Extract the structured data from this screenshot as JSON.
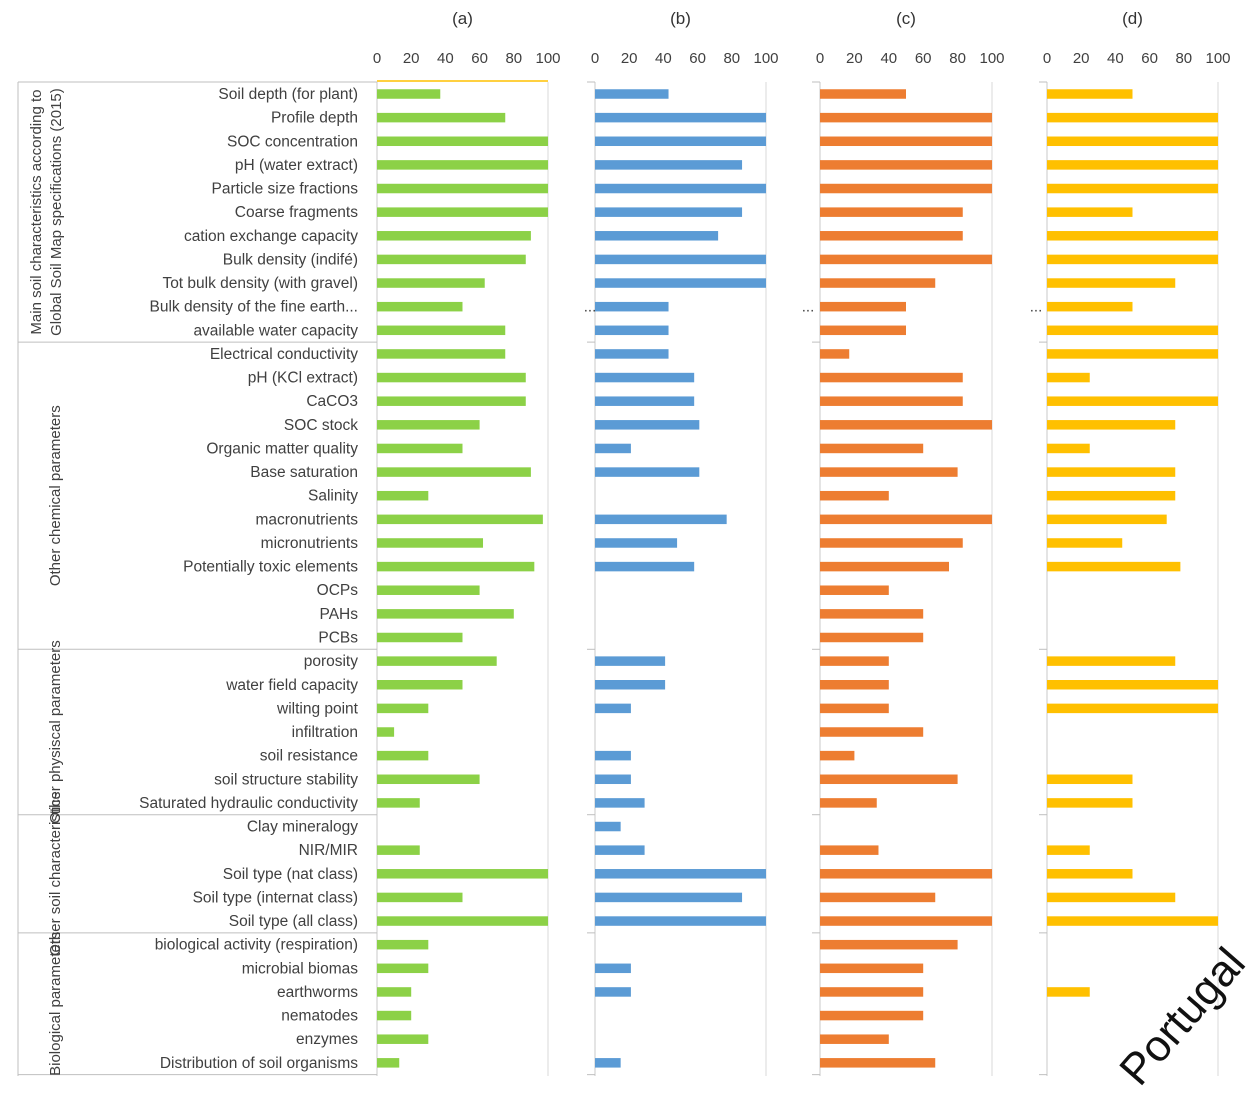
{
  "chart_data": {
    "type": "bar",
    "orientation": "horizontal",
    "xlim": [
      0,
      100
    ],
    "xticks": [
      "0",
      "20",
      "40",
      "60",
      "80",
      "100"
    ],
    "categories": [
      "Soil depth (for plant)",
      "Profile depth",
      "SOC concentration",
      "pH (water extract)",
      "Particle size fractions",
      "Coarse fragments",
      "cation exchange capacity",
      "Bulk density (indifé)",
      "Tot bulk  density (with gravel)",
      "Bulk density of the fine earth...",
      "available water capacity",
      "Electrical conductivity",
      "pH (KCl extract)",
      "CaCO3",
      "SOC stock",
      "Organic matter quality",
      "Base saturation",
      "Salinity",
      "macronutrients",
      "micronutrients",
      "Potentially toxic elements",
      "OCPs",
      "PAHs",
      "PCBs",
      "porosity",
      "water field capacity",
      "wilting point",
      "infiltration",
      "soil resistance",
      "soil structure stability",
      "Saturated hydraulic conductivity",
      "Clay mineralogy",
      "NIR/MIR",
      "Soil type (nat class)",
      "Soil type (internat class)",
      "Soil type (all class)",
      "biological activity (respiration)",
      "microbial biomas",
      "earthworms",
      "nematodes",
      "enzymes",
      "Distribution of soil organisms"
    ],
    "groups": [
      {
        "label": "Main soil characteristics according to Global Soil Map specifications (2015)",
        "start": 0,
        "end": 10
      },
      {
        "label": "Other chemical parameters",
        "start": 11,
        "end": 23
      },
      {
        "label": "Other physiscal parameters",
        "start": 24,
        "end": 30
      },
      {
        "label": "Other soil characteristics",
        "start": 31,
        "end": 35
      },
      {
        "label": "Biological parameters",
        "start": 36,
        "end": 41
      }
    ],
    "series": [
      {
        "panel": "(a)",
        "color": "#8cd147",
        "values": [
          37,
          75,
          100,
          100,
          100,
          100,
          90,
          87,
          63,
          50,
          75,
          75,
          87,
          87,
          60,
          50,
          90,
          30,
          97,
          62,
          92,
          60,
          80,
          50,
          70,
          50,
          30,
          10,
          30,
          60,
          25,
          0,
          25,
          100,
          50,
          100,
          30,
          30,
          20,
          20,
          30,
          13
        ]
      },
      {
        "panel": "(b)",
        "color": "#5b9bd5",
        "values": [
          43,
          100,
          100,
          86,
          100,
          86,
          72,
          100,
          100,
          43,
          43,
          43,
          58,
          58,
          61,
          21,
          61,
          0,
          77,
          48,
          58,
          0,
          0,
          0,
          41,
          41,
          21,
          0,
          21,
          21,
          29,
          15,
          29,
          100,
          86,
          100,
          0,
          21,
          21,
          0,
          0,
          15
        ]
      },
      {
        "panel": "(c)",
        "color": "#ed7d31",
        "values": [
          50,
          100,
          100,
          100,
          100,
          83,
          83,
          100,
          67,
          50,
          50,
          17,
          83,
          83,
          100,
          60,
          80,
          40,
          100,
          83,
          75,
          40,
          60,
          60,
          40,
          40,
          40,
          60,
          20,
          80,
          33,
          0,
          34,
          100,
          67,
          100,
          80,
          60,
          60,
          60,
          40,
          67
        ]
      },
      {
        "panel": "(d)",
        "color": "#ffc000",
        "values": [
          50,
          100,
          100,
          100,
          100,
          50,
          100,
          100,
          75,
          50,
          100,
          100,
          25,
          100,
          75,
          25,
          75,
          75,
          70,
          44,
          78,
          0,
          0,
          0,
          75,
          100,
          100,
          0,
          0,
          50,
          50,
          0,
          25,
          50,
          75,
          100,
          0,
          0,
          25,
          0,
          0,
          0
        ]
      }
    ],
    "truncation_marks": [
      "...",
      "...",
      "..."
    ]
  },
  "watermark": "Portugal"
}
